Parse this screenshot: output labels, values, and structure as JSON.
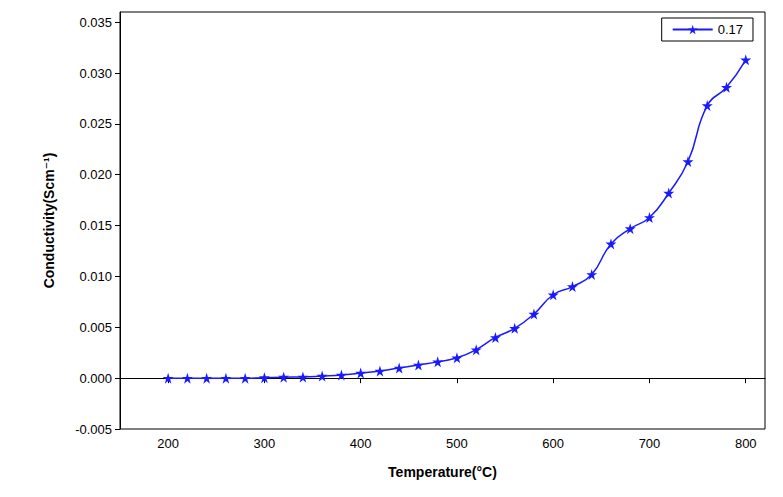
{
  "chart_data": {
    "type": "line",
    "x_label": "Temperature(°C)",
    "y_label": "Conductivity(Scm⁻¹)",
    "x": [
      200,
      220,
      240,
      260,
      280,
      300,
      320,
      340,
      360,
      380,
      400,
      420,
      440,
      460,
      480,
      500,
      520,
      540,
      560,
      580,
      600,
      620,
      640,
      660,
      680,
      700,
      720,
      740,
      760,
      780,
      800
    ],
    "series": [
      {
        "name": "0.17",
        "color": "#1a1aff",
        "marker": "star",
        "line_style": "smooth",
        "values": [
          0,
          0,
          0,
          0,
          0,
          5e-05,
          0.0001,
          0.00012,
          0.0002,
          0.0003,
          0.0005,
          0.0007,
          0.001,
          0.0013,
          0.0016,
          0.002,
          0.0028,
          0.004,
          0.0049,
          0.0063,
          0.0082,
          0.009,
          0.0102,
          0.0132,
          0.0147,
          0.0158,
          0.0182,
          0.0213,
          0.0268,
          0.0286,
          0.0313
        ]
      }
    ],
    "xlim": [
      150,
      820
    ],
    "xticks": [
      200,
      300,
      400,
      500,
      600,
      700,
      800
    ],
    "ylim": [
      -0.005,
      0.036
    ],
    "yticks": [
      -0.005,
      {
        "value": 0,
        "label": "0.000"
      },
      0.005,
      {
        "value": 0.01,
        "label": "0.010"
      },
      0.015,
      {
        "value": 0.02,
        "label": "0.020"
      },
      0.025,
      {
        "value": 0.03,
        "label": "0.030"
      },
      0.035
    ],
    "grid": false,
    "legend": "upper right"
  }
}
